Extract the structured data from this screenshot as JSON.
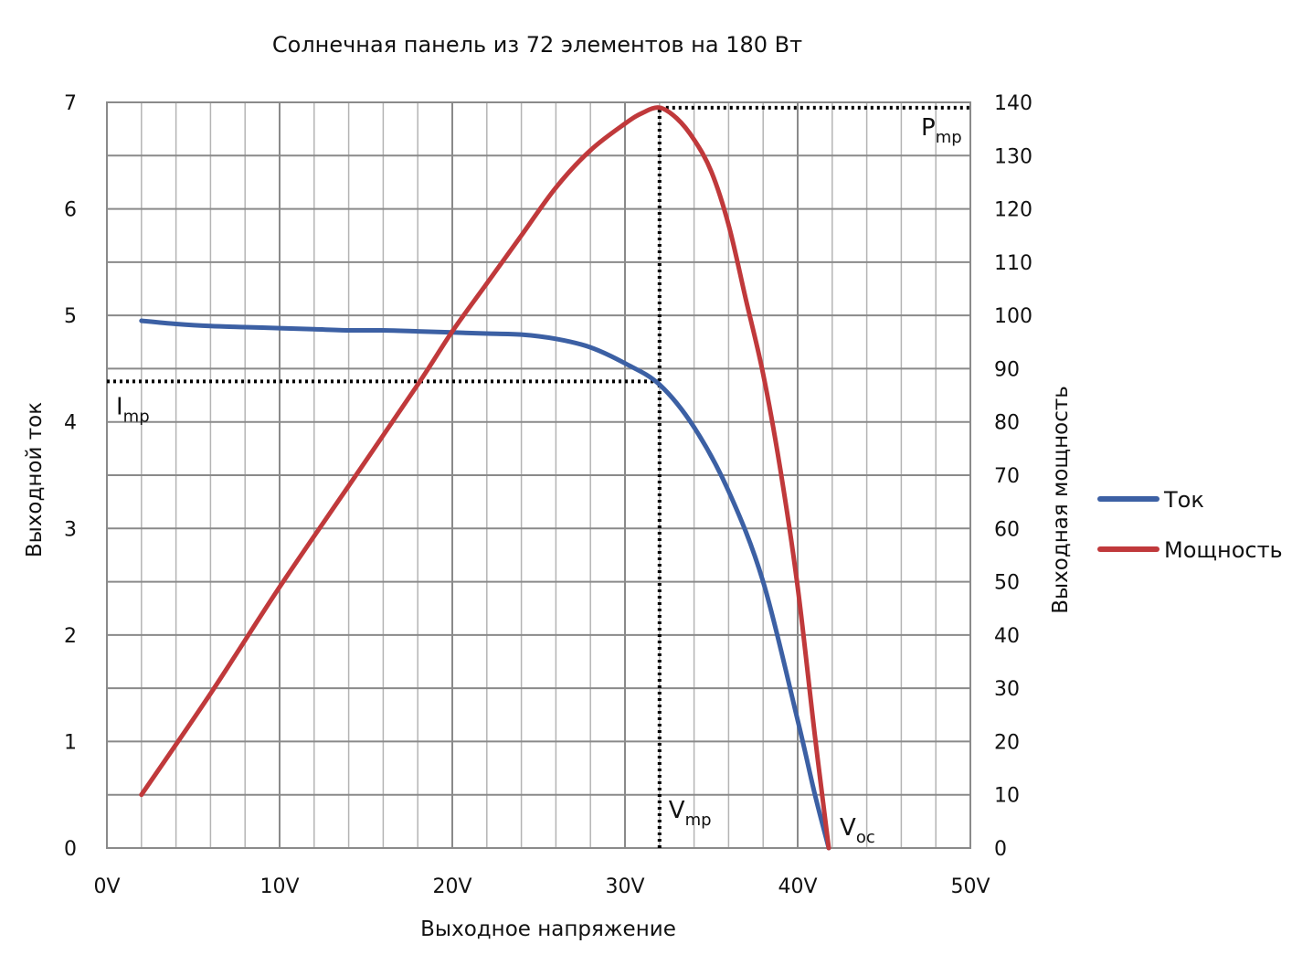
{
  "chart_data": {
    "type": "line",
    "title": "Солнечная панель из 72 элементов на 180 Вт",
    "xlabel": "Выходное напряжение",
    "ylabel_left": "Выходной ток",
    "ylabel_right": "Выходная мощность",
    "x_ticks": [
      "0V",
      "10V",
      "20V",
      "30V",
      "40V",
      "50V"
    ],
    "x_lim": [
      0,
      50
    ],
    "y_left_lim": [
      0,
      7
    ],
    "y_left_ticks": [
      "0",
      "1",
      "2",
      "3",
      "4",
      "5",
      "6",
      "7"
    ],
    "y_right_lim": [
      0,
      140
    ],
    "y_right_ticks": [
      "0",
      "10",
      "20",
      "30",
      "40",
      "50",
      "60",
      "70",
      "80",
      "90",
      "100",
      "110",
      "120",
      "130",
      "140"
    ],
    "grid": true,
    "legend_position": "right",
    "series": [
      {
        "name": "Ток",
        "axis": "left",
        "color": "#3c60a4",
        "x": [
          2,
          4,
          6,
          8,
          10,
          12,
          14,
          16,
          18,
          20,
          22,
          24,
          26,
          28,
          30,
          32,
          34,
          36,
          38,
          40,
          41,
          41.8
        ],
        "y": [
          4.95,
          4.92,
          4.9,
          4.89,
          4.88,
          4.87,
          4.86,
          4.86,
          4.85,
          4.84,
          4.83,
          4.82,
          4.78,
          4.7,
          4.55,
          4.35,
          3.95,
          3.35,
          2.5,
          1.2,
          0.5,
          0
        ]
      },
      {
        "name": "Мощность",
        "axis": "right",
        "color": "#c0393b",
        "x": [
          2,
          6,
          10,
          14,
          18,
          20,
          22,
          24,
          26,
          28,
          30,
          31,
          32,
          33,
          34,
          35,
          36,
          37,
          38,
          39,
          40,
          41,
          41.8
        ],
        "y": [
          10,
          29,
          49,
          68,
          87,
          97,
          106,
          115,
          124,
          131,
          136,
          138,
          139,
          137,
          133,
          127,
          117,
          103,
          89,
          71,
          49,
          21,
          0
        ]
      }
    ],
    "reference_lines": [
      {
        "kind": "horizontal",
        "axis": "left",
        "value": 4.38,
        "from_x": 0,
        "to_x": 32,
        "label": "I",
        "sub": "mp"
      },
      {
        "kind": "vertical",
        "value": 32,
        "from_y_left": 0,
        "to_y_left": 6.95,
        "label": "V",
        "sub": "mp"
      },
      {
        "kind": "horizontal",
        "axis": "right",
        "value": 139,
        "from_x": 32,
        "to_x": 50,
        "label": "P",
        "sub": "mp"
      },
      {
        "kind": "point",
        "value": 41.8,
        "label": "V",
        "sub": "oc"
      }
    ]
  }
}
